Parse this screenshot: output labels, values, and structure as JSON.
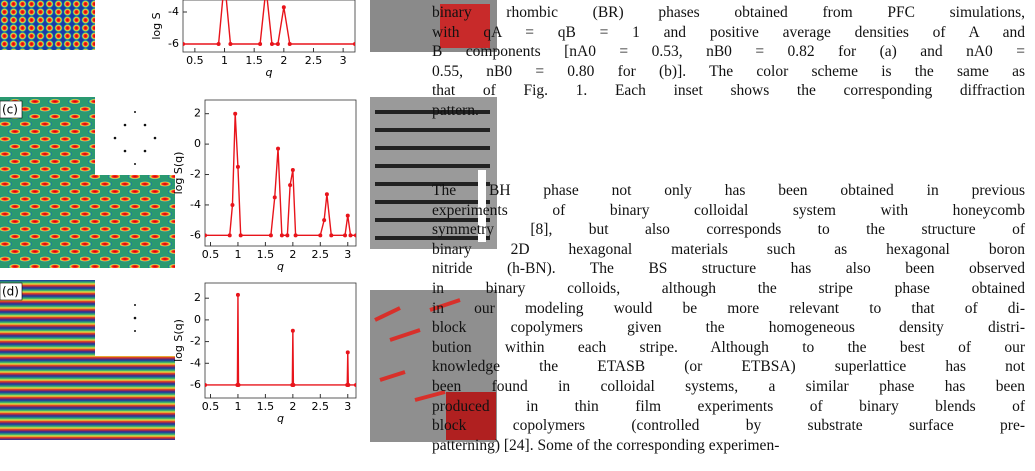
{
  "figure": {
    "panels": [
      {
        "plot": {
          "ylabel": "log S",
          "xlabel": "q",
          "xlim": [
            0.3,
            3.2
          ],
          "ylim": [
            -6.5,
            -3.25
          ],
          "yticks": [
            -4,
            -6
          ],
          "xticks": [
            0.5,
            1,
            1.5,
            2,
            2.5,
            3
          ],
          "color": "#e8141b",
          "x": [
            0.3,
            0.9,
            1.0,
            1.1,
            1.6,
            1.7,
            1.8,
            1.9,
            2.0,
            2.1,
            3.2
          ],
          "y": [
            -6,
            -6,
            -2,
            -6,
            -6,
            -2.5,
            -6,
            -6,
            -3.7,
            -6,
            -6
          ]
        }
      },
      {
        "label": "(c)",
        "plot": {
          "ylabel": "log S(q)",
          "xlabel": "q",
          "xlim": [
            0.4,
            3.15
          ],
          "ylim": [
            -6.7,
            2.9
          ],
          "yticks": [
            2,
            0,
            -2,
            -4,
            -6
          ],
          "xticks": [
            0.5,
            1,
            1.5,
            2,
            2.5,
            3
          ],
          "color": "#e8141b",
          "x": [
            0.4,
            0.85,
            0.9,
            0.95,
            1.0,
            1.05,
            1.6,
            1.67,
            1.73,
            1.8,
            1.9,
            1.95,
            2.0,
            2.05,
            2.5,
            2.57,
            2.62,
            2.7,
            2.95,
            3.0,
            3.05,
            3.15
          ],
          "y": [
            -6,
            -6,
            -4,
            2,
            -1.5,
            -6,
            -6,
            -3.5,
            -0.3,
            -6,
            -6,
            -2.7,
            -1.7,
            -6,
            -6,
            -5,
            -3.3,
            -6,
            -6,
            -4.7,
            -6,
            -6
          ]
        }
      },
      {
        "label": "(d)",
        "plot": {
          "ylabel": "log S(q)",
          "xlabel": "q",
          "xlim": [
            0.4,
            3.15
          ],
          "ylim": [
            -7.2,
            3.4
          ],
          "yticks": [
            2,
            0,
            -2,
            -4,
            -6
          ],
          "xticks": [
            0.5,
            1,
            1.5,
            2,
            2.5,
            3
          ],
          "color": "#e8141b",
          "x": [
            0.4,
            0.99,
            1.0,
            1.01,
            1.99,
            2.0,
            2.01,
            2.99,
            3.0,
            3.01,
            3.15
          ],
          "y": [
            -6,
            -6,
            2.3,
            -6,
            -6,
            -1,
            -6,
            -6,
            -3,
            -6,
            -6
          ]
        }
      }
    ]
  },
  "caption": {
    "lines": [
      "binary rhombic (BR) phases obtained from PFC simulations,",
      "with qA = qB = 1 and positive average densities of A and",
      "B components [nA0 = 0.53, nB0 = 0.82 for (a) and nA0 =",
      "0.55, nB0 = 0.80 for (b)]. The color scheme is the same as",
      "that of Fig. 1. Each inset shows the corresponding diffraction",
      "pattern."
    ]
  },
  "body": {
    "lines": [
      "The BH phase not only has been obtained in previous",
      "experiments of binary colloidal system with honeycomb",
      "symmetry [8], but also corresponds to the structure of",
      "binary 2D hexagonal materials such as hexagonal boron",
      "nitride (h-BN). The BS structure has also been observed",
      "in binary colloids, although the stripe phase obtained",
      "in our modeling would be more relevant to that of di-",
      "block copolymers given the homogeneous density distri-",
      "bution within each stripe. Although to the best of our",
      "knowledge the ETASB (or ETBSA) superlattice has not",
      "been found in colloidal systems, a similar phase has been",
      "produced in thin film experiments of binary blends of",
      "block copolymers (controlled by substrate surface pre-",
      "patterning) [24]. Some of the corresponding experimen-"
    ]
  }
}
